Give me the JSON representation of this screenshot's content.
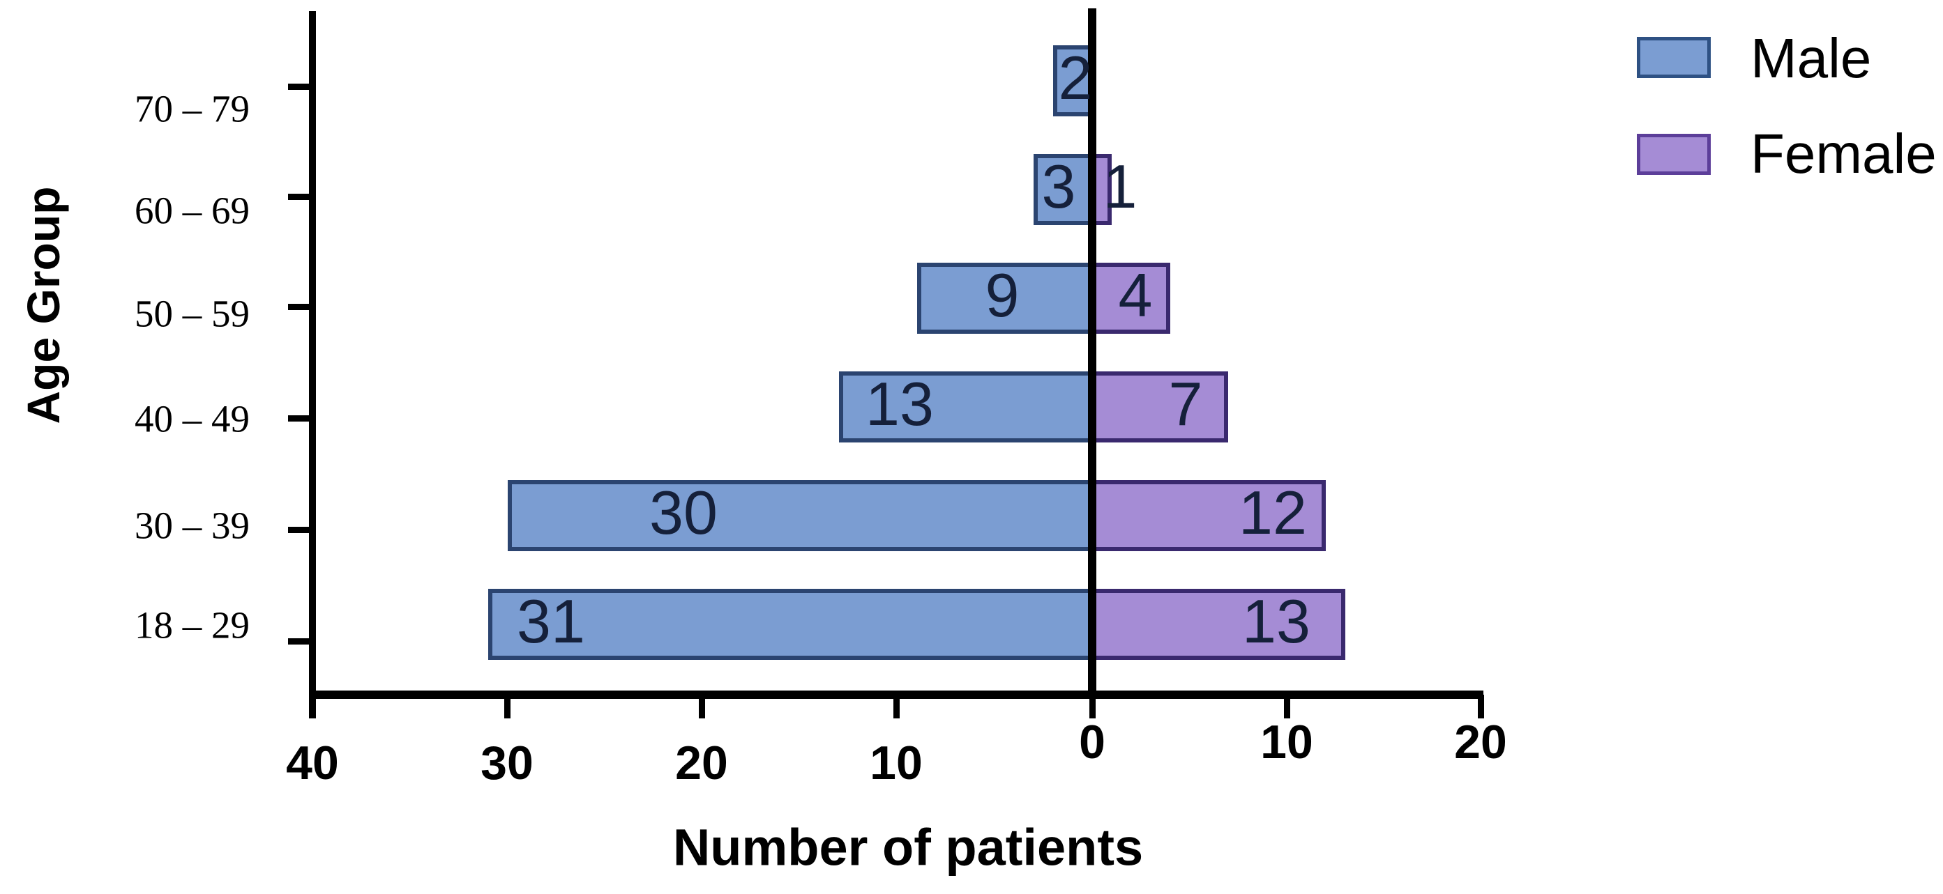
{
  "chart_data": {
    "type": "bar",
    "orientation": "horizontal-diverging-pyramid",
    "title": "",
    "xlabel": "Number of patients",
    "ylabel": "Age Group",
    "categories": [
      "70 – 79",
      "60 – 69",
      "50 – 59",
      "40 – 49",
      "30 – 39",
      "18 – 29"
    ],
    "series": [
      {
        "name": "Male",
        "side": "left",
        "fill": "#7B9DD2",
        "border": "#2B4470",
        "values": [
          2,
          3,
          9,
          13,
          30,
          31
        ]
      },
      {
        "name": "Female",
        "side": "right",
        "fill": "#A58CD5",
        "border": "#3A296E",
        "values": [
          0,
          1,
          4,
          7,
          12,
          13
        ]
      }
    ],
    "bar_value_labels": {
      "male": [
        "2",
        "3",
        "9",
        "13",
        "30",
        "31"
      ],
      "female": [
        "",
        "1",
        "4",
        "7",
        "12",
        "13"
      ]
    },
    "x_axis": {
      "tick_labels": [
        "40",
        "30",
        "20",
        "10",
        "0",
        "10",
        "20"
      ],
      "tick_values": [
        -40,
        -30,
        -20,
        -10,
        0,
        10,
        20
      ],
      "range": [
        -40,
        20
      ]
    },
    "legend": {
      "position": "top-right",
      "entries": [
        "Male",
        "Female"
      ]
    },
    "grid": "off"
  },
  "colors": {
    "background": "#ffffff",
    "axis": "#000000",
    "bar_label_text": "#15203A",
    "male_fill": "#7B9DD2",
    "male_border": "#2B4470",
    "female_fill": "#A58CD5",
    "female_border": "#3A296E",
    "legend_male_border": "#2E5183",
    "legend_female_border": "#5C3E99"
  }
}
